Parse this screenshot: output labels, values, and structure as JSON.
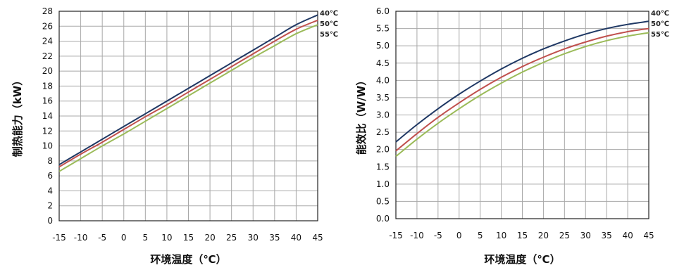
{
  "chart_data": [
    {
      "type": "line",
      "xlabel": "环境温度（℃）",
      "ylabel": "制热能力（kW）",
      "x": [
        -15,
        -10,
        -5,
        0,
        5,
        10,
        15,
        20,
        25,
        30,
        35,
        40,
        45
      ],
      "x_ticks": [
        "-15",
        "-10",
        "-5",
        "0",
        "5",
        "10",
        "15",
        "20",
        "25",
        "30",
        "35",
        "40",
        "45"
      ],
      "y_ticks": [
        "0",
        "2",
        "4",
        "6",
        "8",
        "10",
        "12",
        "14",
        "16",
        "18",
        "20",
        "22",
        "24",
        "26",
        "28"
      ],
      "xlim": [
        -15,
        45
      ],
      "ylim": [
        0,
        28
      ],
      "grid": true,
      "legend": "right end of lines",
      "series": [
        {
          "name": "40℃",
          "color": "#1f3864",
          "values": [
            7.5,
            9.2,
            10.9,
            12.6,
            14.3,
            16.0,
            17.7,
            19.4,
            21.1,
            22.8,
            24.5,
            26.2,
            27.5
          ]
        },
        {
          "name": "50℃",
          "color": "#c0504d",
          "values": [
            7.2,
            8.9,
            10.5,
            12.2,
            13.9,
            15.5,
            17.2,
            18.9,
            20.6,
            22.3,
            24.0,
            25.6,
            26.8
          ]
        },
        {
          "name": "55℃",
          "color": "#9bbb59",
          "values": [
            6.6,
            8.3,
            10.0,
            11.6,
            13.3,
            15.0,
            16.7,
            18.4,
            20.1,
            21.8,
            23.4,
            25.0,
            26.2
          ]
        }
      ]
    },
    {
      "type": "line",
      "xlabel": "环境温度（℃）",
      "ylabel": "能效比（W/W）",
      "x": [
        -15,
        -10,
        -5,
        0,
        5,
        10,
        15,
        20,
        25,
        30,
        35,
        40,
        45
      ],
      "x_ticks": [
        "-15",
        "-10",
        "-5",
        "0",
        "5",
        "10",
        "15",
        "20",
        "25",
        "30",
        "35",
        "40",
        "45"
      ],
      "y_ticks": [
        "0.0",
        "0.5",
        "1.0",
        "1.5",
        "2.0",
        "2.5",
        "3.0",
        "3.5",
        "4.0",
        "4.5",
        "5.0",
        "5.5",
        "6.0"
      ],
      "xlim": [
        -15,
        45
      ],
      "ylim": [
        0,
        6
      ],
      "grid": true,
      "legend": "right end of lines",
      "series": [
        {
          "name": "40℃",
          "color": "#1f3864",
          "values": [
            2.22,
            2.72,
            3.18,
            3.6,
            3.98,
            4.33,
            4.64,
            4.91,
            5.14,
            5.34,
            5.5,
            5.62,
            5.71
          ]
        },
        {
          "name": "50℃",
          "color": "#c0504d",
          "values": [
            1.96,
            2.46,
            2.93,
            3.35,
            3.74,
            4.09,
            4.4,
            4.67,
            4.91,
            5.11,
            5.28,
            5.41,
            5.5
          ]
        },
        {
          "name": "55℃",
          "color": "#9bbb59",
          "values": [
            1.8,
            2.3,
            2.76,
            3.18,
            3.57,
            3.92,
            4.24,
            4.52,
            4.77,
            4.98,
            5.15,
            5.28,
            5.38
          ]
        }
      ]
    }
  ]
}
